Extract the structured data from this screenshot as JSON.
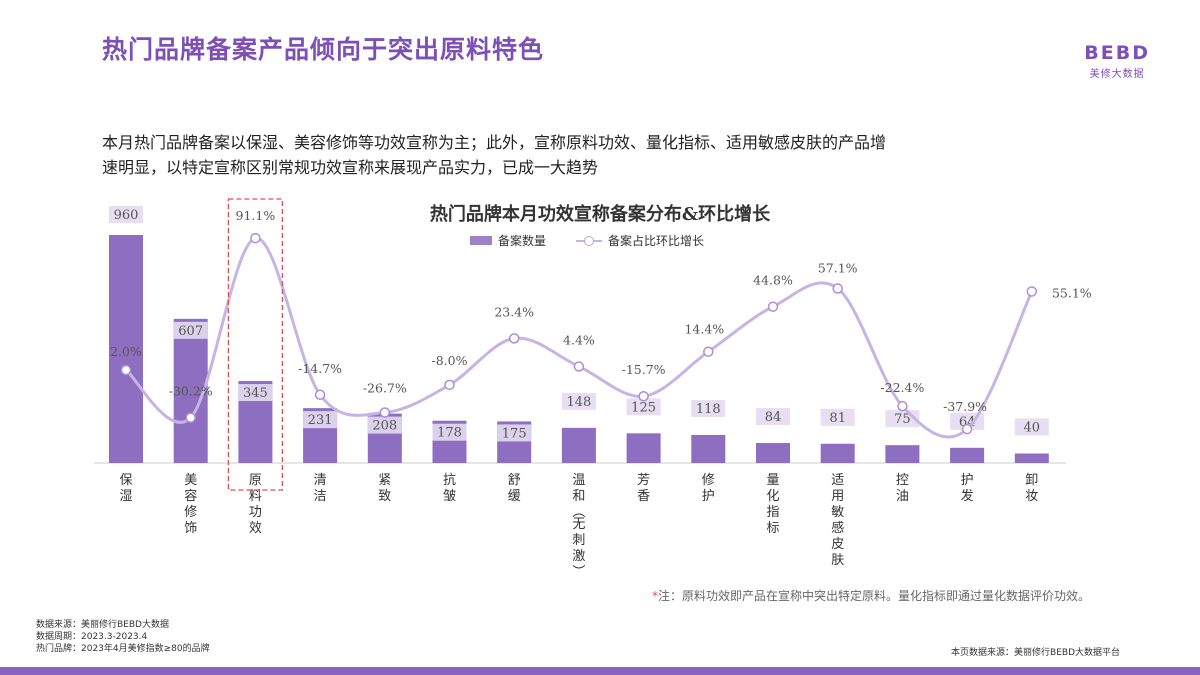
{
  "header": {
    "title": "热门品牌备案产品倾向于突出原料特色",
    "logo_mark": "BEBD",
    "logo_sub": "美修大数据"
  },
  "intro": {
    "line1": "本月热门品牌备案以保湿、美容修饰等功效宣称为主；此外，宣称原料功效、量化指标、适用敏感皮肤的产品增",
    "line2": "速明显，以特定宣称区别常规功效宣称来展现产品实力，已成一大趋势"
  },
  "chart_data": {
    "type": "bar",
    "title": "热门品牌本月功效宣称备案分布&环比增长",
    "legend_position": "top-center",
    "categories": [
      "保湿",
      "美容修饰",
      "原料功效",
      "清洁",
      "紧致",
      "抗皱",
      "舒缓",
      "温和（无刺激）",
      "芳香",
      "修护",
      "量化指标",
      "适用敏感皮肤",
      "控油",
      "护发",
      "卸妆"
    ],
    "series": [
      {
        "name": "备案数量",
        "kind": "bar",
        "color": "#8e6ec0",
        "values": [
          960,
          607,
          345,
          231,
          208,
          178,
          175,
          148,
          125,
          118,
          84,
          81,
          75,
          64,
          40
        ],
        "labels": [
          "960",
          "607",
          "345",
          "231",
          "208",
          "178",
          "175",
          "148",
          "125",
          "118",
          "84",
          "81",
          "75",
          "64",
          "40"
        ]
      },
      {
        "name": "备案占比环比增长",
        "kind": "line",
        "color": "#c6b4e4",
        "values": [
          2.0,
          -30.2,
          91.1,
          -14.7,
          -26.7,
          -8.0,
          23.4,
          4.4,
          -15.7,
          14.4,
          44.8,
          57.1,
          -22.4,
          -37.9,
          55.1
        ],
        "labels": [
          "2.0%",
          "-30.2%",
          "91.1%",
          "-14.7%",
          "-26.7%",
          "-8.0%",
          "23.4%",
          "4.4%",
          "-15.7%",
          "14.4%",
          "44.8%",
          "57.1%",
          "-22.4%",
          "-37.9%",
          "55.1%"
        ]
      }
    ],
    "highlight_category": "原料功效"
  },
  "footnote": {
    "star": "*",
    "text": "注：原料功效即产品在宣称中突出特定原料。量化指标即通过量化数据评价功效。"
  },
  "sources": {
    "line1": "数据来源：美丽修行BEBD大数据",
    "line2": "数据周期：2023.3-2023.4",
    "line3": "热门品牌：2023年4月美修指数≥80的品牌"
  },
  "platform": "本页数据来源：美丽修行BEBD大数据平台",
  "colors": {
    "accent": "#7d4fb8",
    "bar": "#8e6ec0",
    "bar_label_bg": "#e4dbf0",
    "line": "#c6b4e4",
    "highlight_box": "#e05050",
    "bottom_bar": "#8a63c0"
  }
}
